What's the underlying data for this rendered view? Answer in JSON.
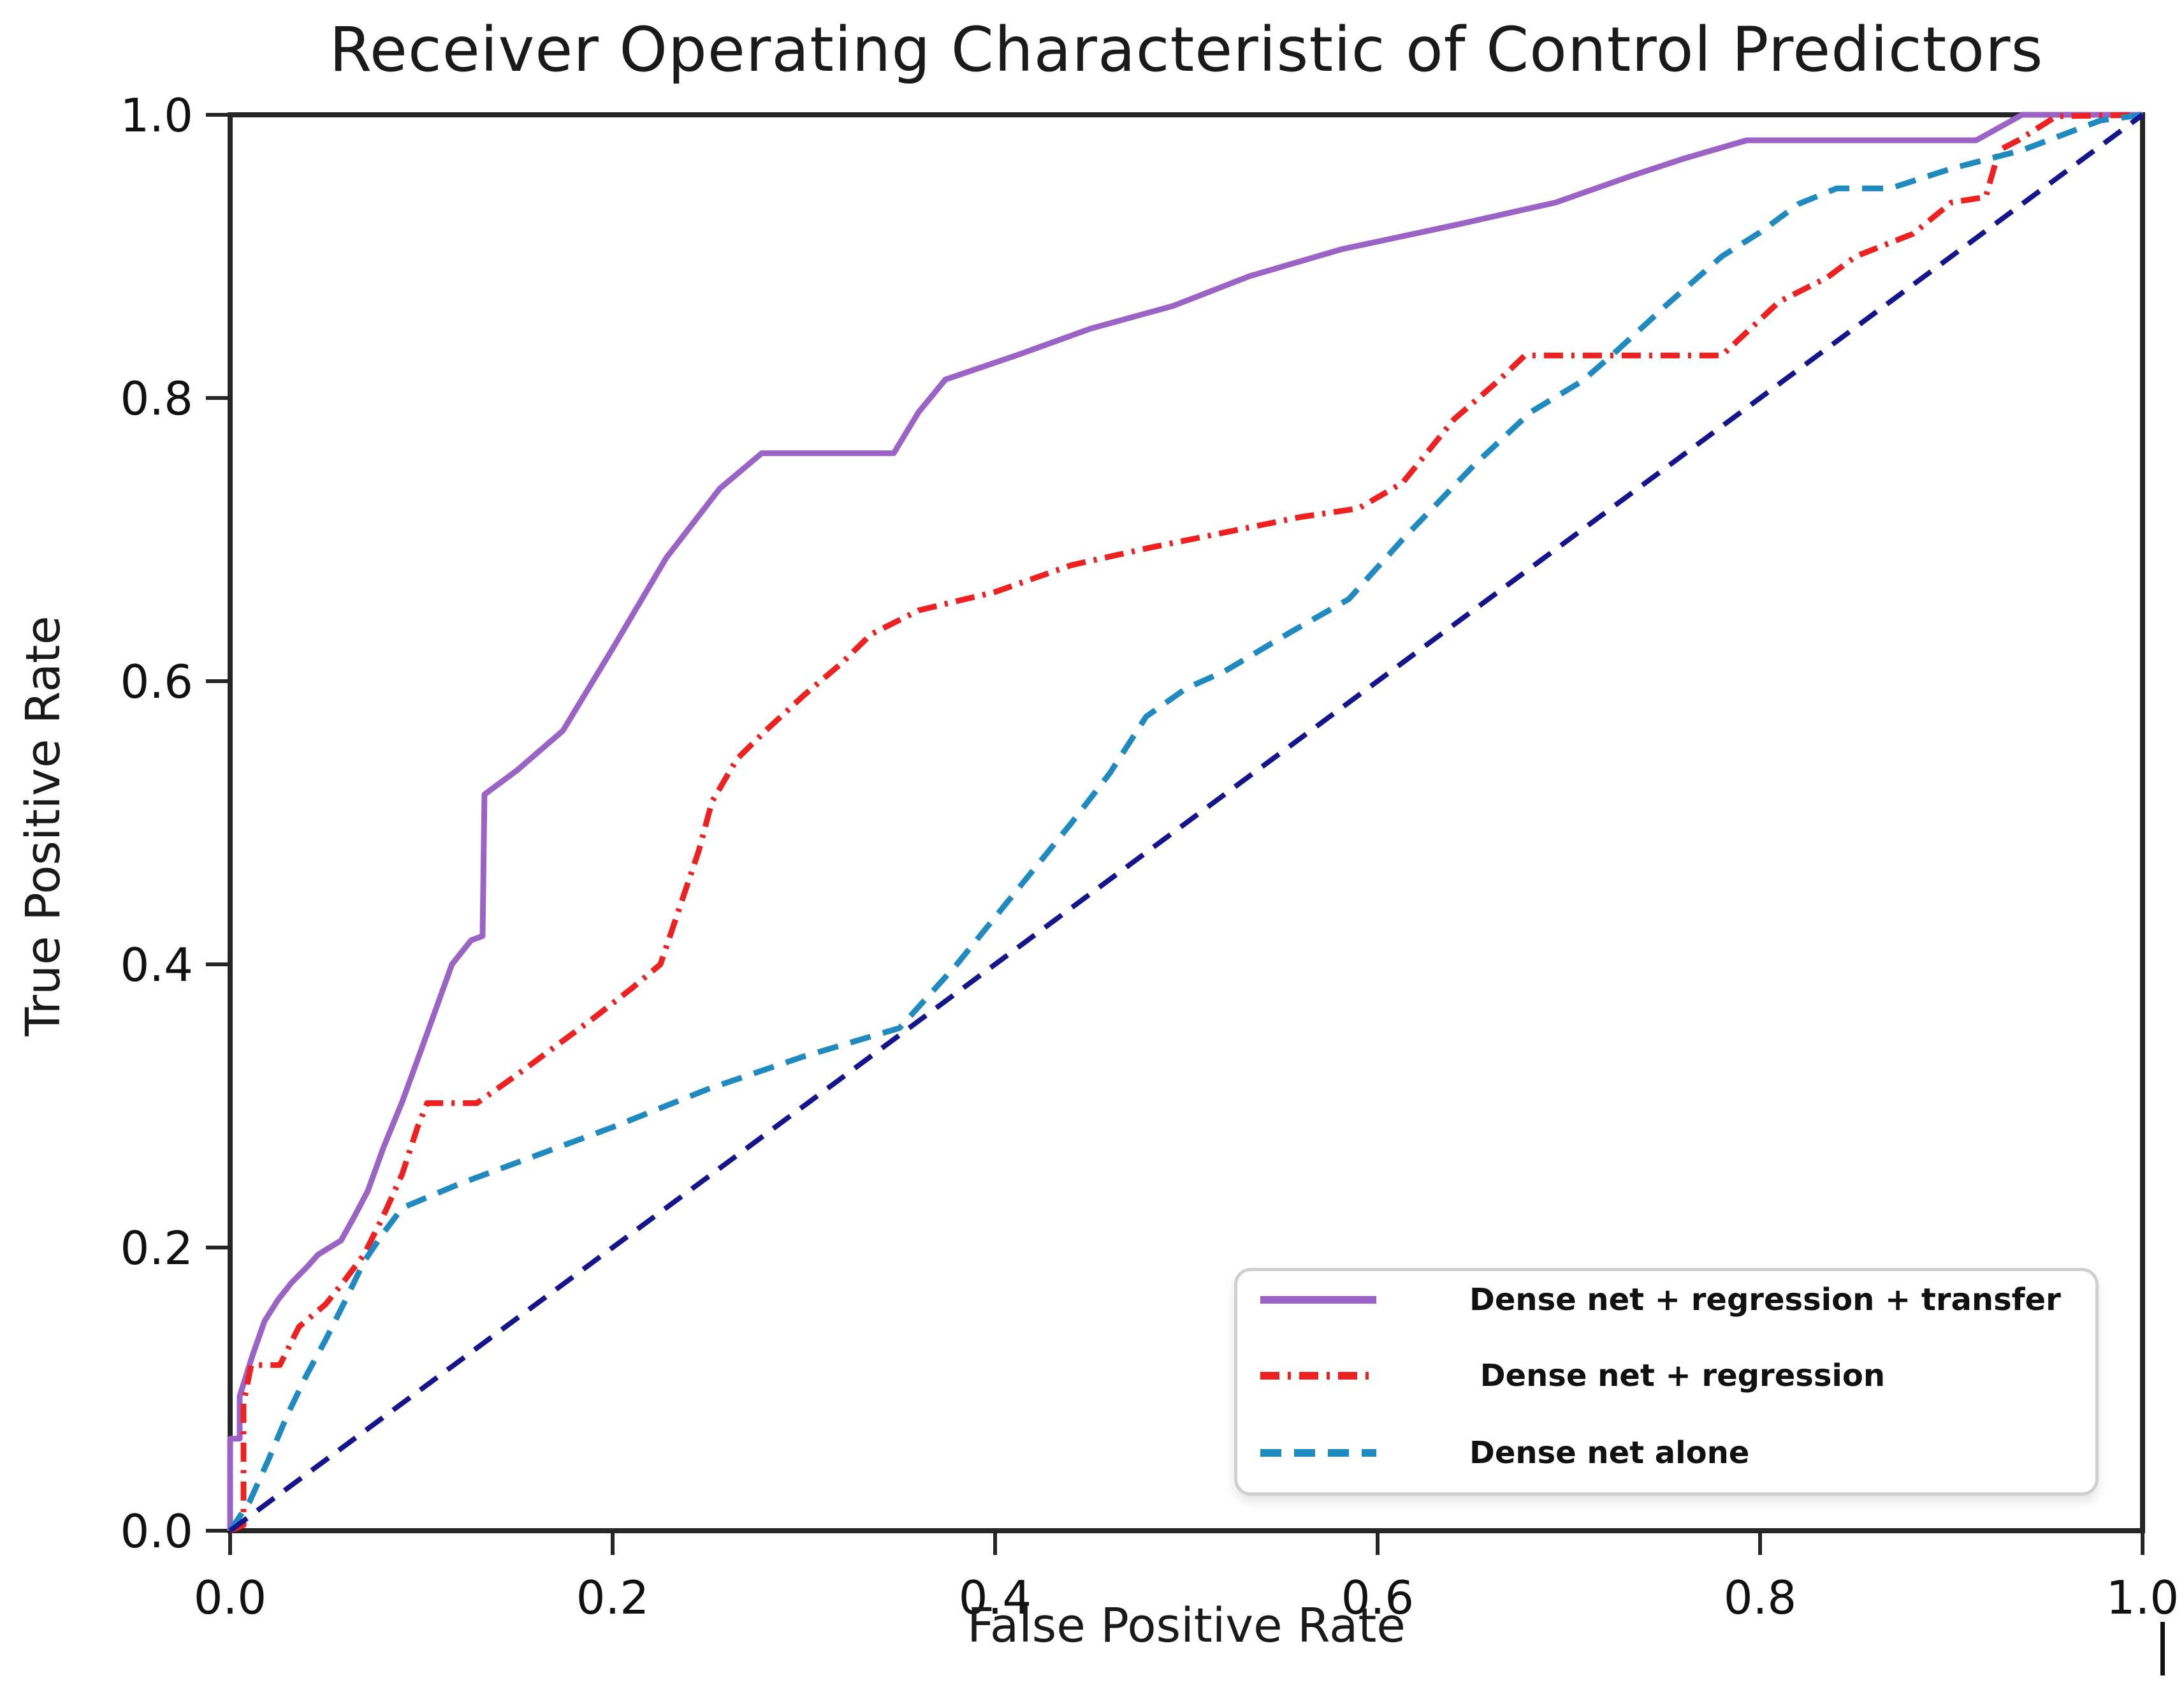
{
  "chart_data": {
    "type": "line",
    "title": "Receiver Operating Characteristic of Control Predictors",
    "xlabel": "False Positive Rate",
    "ylabel": "True Positive Rate",
    "xlim": [
      0.0,
      1.0
    ],
    "ylim": [
      0.0,
      1.0
    ],
    "grid": false,
    "legend_position": "lower right",
    "x_tick_values": [
      0.0,
      0.2,
      0.4,
      0.6,
      0.8,
      1.0
    ],
    "x_tick_labels": [
      "0.0",
      "0.2",
      "0.4",
      "0.6",
      "0.8",
      "1.0"
    ],
    "y_tick_values": [
      0.0,
      0.2,
      0.4,
      0.6,
      0.8,
      1.0
    ],
    "y_tick_labels": [
      "0.0",
      "0.2",
      "0.4",
      "0.6",
      "0.8",
      "1.0"
    ],
    "axis_color": "#262626",
    "series": [
      {
        "name": "Dense net + regression + transfer",
        "color": "#9b63c6",
        "style": "solid",
        "width": 9,
        "in_legend": true,
        "points": [
          [
            0,
            0
          ],
          [
            0,
            0.065
          ],
          [
            0.005,
            0.065
          ],
          [
            0.005,
            0.095
          ],
          [
            0.012,
            0.125
          ],
          [
            0.018,
            0.148
          ],
          [
            0.025,
            0.163
          ],
          [
            0.032,
            0.175
          ],
          [
            0.04,
            0.186
          ],
          [
            0.046,
            0.195
          ],
          [
            0.058,
            0.205
          ],
          [
            0.065,
            0.222
          ],
          [
            0.072,
            0.24
          ],
          [
            0.08,
            0.27
          ],
          [
            0.09,
            0.303
          ],
          [
            0.1,
            0.34
          ],
          [
            0.108,
            0.37
          ],
          [
            0.116,
            0.4
          ],
          [
            0.126,
            0.417
          ],
          [
            0.132,
            0.42
          ],
          [
            0.133,
            0.52
          ],
          [
            0.15,
            0.537
          ],
          [
            0.174,
            0.565
          ],
          [
            0.2,
            0.623
          ],
          [
            0.228,
            0.687
          ],
          [
            0.256,
            0.736
          ],
          [
            0.278,
            0.761
          ],
          [
            0.347,
            0.761
          ],
          [
            0.36,
            0.79
          ],
          [
            0.374,
            0.813
          ],
          [
            0.413,
            0.831
          ],
          [
            0.45,
            0.849
          ],
          [
            0.493,
            0.865
          ],
          [
            0.533,
            0.886
          ],
          [
            0.581,
            0.905
          ],
          [
            0.64,
            0.922
          ],
          [
            0.693,
            0.938
          ],
          [
            0.733,
            0.957
          ],
          [
            0.76,
            0.969
          ],
          [
            0.793,
            0.982
          ],
          [
            0.913,
            0.982
          ],
          [
            0.937,
            1
          ],
          [
            1,
            1
          ]
        ]
      },
      {
        "name": " Dense net + regression",
        "color": "#ee2020",
        "style": "dashdot",
        "width": 9,
        "in_legend": true,
        "points": [
          [
            0,
            0
          ],
          [
            0.007,
            0.004
          ],
          [
            0.007,
            0.09
          ],
          [
            0.011,
            0.117
          ],
          [
            0.026,
            0.117
          ],
          [
            0.036,
            0.144
          ],
          [
            0.05,
            0.16
          ],
          [
            0.06,
            0.177
          ],
          [
            0.07,
            0.195
          ],
          [
            0.08,
            0.222
          ],
          [
            0.09,
            0.252
          ],
          [
            0.098,
            0.285
          ],
          [
            0.103,
            0.302
          ],
          [
            0.129,
            0.302
          ],
          [
            0.15,
            0.322
          ],
          [
            0.17,
            0.342
          ],
          [
            0.19,
            0.362
          ],
          [
            0.21,
            0.383
          ],
          [
            0.225,
            0.4
          ],
          [
            0.235,
            0.44
          ],
          [
            0.245,
            0.48
          ],
          [
            0.252,
            0.515
          ],
          [
            0.265,
            0.545
          ],
          [
            0.28,
            0.565
          ],
          [
            0.3,
            0.59
          ],
          [
            0.32,
            0.613
          ],
          [
            0.335,
            0.633
          ],
          [
            0.36,
            0.65
          ],
          [
            0.4,
            0.663
          ],
          [
            0.44,
            0.682
          ],
          [
            0.48,
            0.694
          ],
          [
            0.52,
            0.705
          ],
          [
            0.56,
            0.716
          ],
          [
            0.59,
            0.722
          ],
          [
            0.613,
            0.74
          ],
          [
            0.64,
            0.785
          ],
          [
            0.663,
            0.812
          ],
          [
            0.677,
            0.83
          ],
          [
            0.78,
            0.83
          ],
          [
            0.81,
            0.868
          ],
          [
            0.835,
            0.885
          ],
          [
            0.85,
            0.9
          ],
          [
            0.88,
            0.916
          ],
          [
            0.9,
            0.938
          ],
          [
            0.918,
            0.942
          ],
          [
            0.925,
            0.975
          ],
          [
            0.935,
            0.982
          ],
          [
            0.955,
            0.999
          ],
          [
            1,
            1
          ]
        ]
      },
      {
        "name": "Dense net alone",
        "color": "#1f8ac0",
        "style": "dashed",
        "width": 9,
        "in_legend": true,
        "points": [
          [
            0,
            0
          ],
          [
            0.01,
            0.02
          ],
          [
            0.02,
            0.05
          ],
          [
            0.03,
            0.082
          ],
          [
            0.04,
            0.11
          ],
          [
            0.05,
            0.135
          ],
          [
            0.06,
            0.162
          ],
          [
            0.07,
            0.19
          ],
          [
            0.08,
            0.21
          ],
          [
            0.09,
            0.228
          ],
          [
            0.12,
            0.245
          ],
          [
            0.15,
            0.26
          ],
          [
            0.2,
            0.285
          ],
          [
            0.25,
            0.312
          ],
          [
            0.3,
            0.335
          ],
          [
            0.35,
            0.355
          ],
          [
            0.38,
            0.4
          ],
          [
            0.41,
            0.45
          ],
          [
            0.44,
            0.5
          ],
          [
            0.46,
            0.535
          ],
          [
            0.479,
            0.575
          ],
          [
            0.5,
            0.595
          ],
          [
            0.52,
            0.607
          ],
          [
            0.555,
            0.635
          ],
          [
            0.585,
            0.658
          ],
          [
            0.613,
            0.7
          ],
          [
            0.65,
            0.752
          ],
          [
            0.68,
            0.79
          ],
          [
            0.707,
            0.812
          ],
          [
            0.724,
            0.832
          ],
          [
            0.753,
            0.868
          ],
          [
            0.78,
            0.9
          ],
          [
            0.8,
            0.917
          ],
          [
            0.82,
            0.937
          ],
          [
            0.84,
            0.948
          ],
          [
            0.868,
            0.948
          ],
          [
            0.9,
            0.962
          ],
          [
            0.937,
            0.975
          ],
          [
            0.978,
            0.996
          ],
          [
            1,
            1
          ]
        ]
      },
      {
        "name": "chance diagonal",
        "color": "#14148c",
        "style": "dashed",
        "width": 8,
        "in_legend": false,
        "points": [
          [
            0,
            0
          ],
          [
            1,
            1
          ]
        ]
      }
    ]
  }
}
